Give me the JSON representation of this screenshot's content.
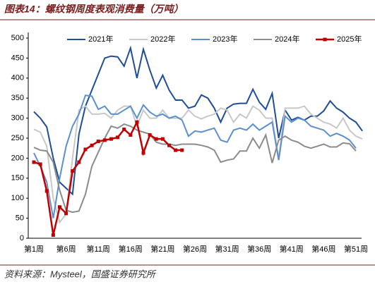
{
  "chart_data": {
    "type": "line",
    "title": "图表14：螺纹钢周度表观消费量（万吨）",
    "source": "资料来源：Mysteel，国盛证券研究所",
    "categories": [
      "第1周",
      null,
      null,
      null,
      null,
      "第6周",
      null,
      null,
      null,
      null,
      "第11周",
      null,
      null,
      null,
      null,
      "第16周",
      null,
      null,
      null,
      null,
      "第21周",
      null,
      null,
      null,
      null,
      "第26周",
      null,
      null,
      null,
      null,
      "第31周",
      null,
      null,
      null,
      null,
      "第36周",
      null,
      null,
      null,
      null,
      "第41周",
      null,
      null,
      null,
      null,
      "第46周",
      null,
      null,
      null,
      null,
      "第51周",
      null
    ],
    "ylim": [
      0,
      500
    ],
    "yticks": [
      0,
      50,
      100,
      150,
      200,
      250,
      300,
      350,
      400,
      450,
      500
    ],
    "grid": false,
    "legend": "top",
    "series": [
      {
        "name": "2021年",
        "color": "#1f4e99",
        "values": [
          316,
          300,
          278,
          200,
          140,
          125,
          110,
          260,
          330,
          370,
          410,
          450,
          455,
          453,
          430,
          475,
          400,
          472,
          420,
          375,
          407,
          370,
          345,
          345,
          325,
          330,
          358,
          350,
          325,
          290,
          325,
          335,
          337,
          337,
          372,
          340,
          322,
          362,
          250,
          320,
          295,
          302,
          295,
          305,
          305,
          318,
          343,
          325,
          315,
          300,
          290,
          268
        ]
      },
      {
        "name": "2022年",
        "color": "#c8c8c8",
        "values": [
          272,
          265,
          230,
          100,
          40,
          60,
          200,
          320,
          330,
          310,
          310,
          312,
          300,
          320,
          330,
          330,
          280,
          320,
          300,
          300,
          320,
          300,
          300,
          300,
          320,
          305,
          298,
          305,
          310,
          325,
          320,
          290,
          310,
          300,
          330,
          320,
          300,
          300,
          200,
          325,
          325,
          325,
          330,
          310,
          300,
          290,
          285,
          275,
          300,
          270,
          255,
          248
        ]
      },
      {
        "name": "2023年",
        "color": "#5b8fd0",
        "values": [
          213,
          180,
          140,
          50,
          150,
          230,
          280,
          310,
          357,
          355,
          322,
          330,
          310,
          310,
          320,
          330,
          300,
          333,
          315,
          305,
          310,
          300,
          305,
          295,
          255,
          268,
          265,
          270,
          275,
          245,
          240,
          270,
          275,
          270,
          285,
          270,
          280,
          290,
          195,
          305,
          290,
          300,
          295,
          280,
          275,
          270,
          255,
          262,
          255,
          245,
          225,
          null
        ]
      },
      {
        "name": "2024年",
        "color": "#8c8c8c",
        "values": [
          227,
          220,
          218,
          190,
          120,
          70,
          65,
          68,
          110,
          180,
          215,
          250,
          280,
          275,
          285,
          280,
          270,
          265,
          260,
          240,
          235,
          235,
          232,
          235,
          235,
          235,
          232,
          228,
          220,
          190,
          195,
          198,
          218,
          218,
          250,
          225,
          258,
          188,
          245,
          255,
          245,
          240,
          230,
          225,
          230,
          235,
          228,
          228,
          238,
          236,
          218,
          null
        ]
      },
      {
        "name": "2025年",
        "color": "#c00000",
        "marker": true,
        "values": [
          190,
          185,
          118,
          8,
          78,
          62,
          168,
          190,
          222,
          232,
          242,
          245,
          248,
          252,
          272,
          258,
          290,
          213,
          258,
          248,
          248,
          232,
          220,
          220,
          null,
          null,
          null,
          null,
          null,
          null,
          null,
          null,
          null,
          null,
          null,
          null,
          null,
          null,
          null,
          null,
          null,
          null,
          null,
          null,
          null,
          null,
          null,
          null,
          null,
          null,
          null,
          null
        ]
      }
    ]
  }
}
